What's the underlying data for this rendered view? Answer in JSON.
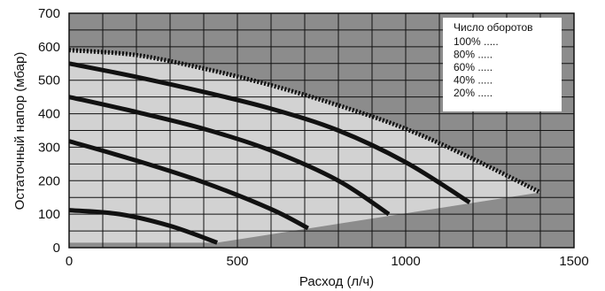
{
  "chart_data": {
    "type": "line",
    "title": "",
    "xlabel": "Расход (л/ч)",
    "ylabel": "Остаточный напор (мбар)",
    "xlim": [
      0,
      1500
    ],
    "ylim": [
      0,
      700
    ],
    "x_ticks": [
      0,
      500,
      1000,
      1500
    ],
    "y_ticks": [
      0,
      100,
      200,
      300,
      400,
      500,
      600,
      700
    ],
    "grid": true,
    "legend": {
      "title": "Число оборотов",
      "placement": "top-right",
      "entries": [
        "100% .....",
        "80% .....",
        "60% .....",
        "40% .....",
        "20% ....."
      ]
    },
    "series": [
      {
        "name": "100%",
        "style": "dotted",
        "points": [
          [
            0,
            590
          ],
          [
            200,
            575
          ],
          [
            400,
            535
          ],
          [
            600,
            485
          ],
          [
            800,
            425
          ],
          [
            1000,
            355
          ],
          [
            1200,
            265
          ],
          [
            1400,
            165
          ]
        ]
      },
      {
        "name": "80%",
        "style": "solid",
        "points": [
          [
            0,
            550
          ],
          [
            200,
            510
          ],
          [
            400,
            465
          ],
          [
            600,
            415
          ],
          [
            800,
            350
          ],
          [
            1000,
            255
          ],
          [
            1190,
            135
          ]
        ]
      },
      {
        "name": "60%",
        "style": "solid",
        "points": [
          [
            0,
            450
          ],
          [
            200,
            405
          ],
          [
            400,
            355
          ],
          [
            600,
            290
          ],
          [
            800,
            200
          ],
          [
            950,
            100
          ]
        ]
      },
      {
        "name": "40%",
        "style": "solid",
        "points": [
          [
            0,
            318
          ],
          [
            200,
            260
          ],
          [
            400,
            195
          ],
          [
            600,
            115
          ],
          [
            710,
            58
          ]
        ]
      },
      {
        "name": "20%",
        "style": "solid",
        "points": [
          [
            0,
            112
          ],
          [
            150,
            100
          ],
          [
            300,
            65
          ],
          [
            440,
            15
          ]
        ]
      }
    ],
    "operating_region": [
      [
        0,
        590
      ],
      [
        200,
        575
      ],
      [
        400,
        535
      ],
      [
        600,
        485
      ],
      [
        800,
        425
      ],
      [
        1000,
        355
      ],
      [
        1200,
        265
      ],
      [
        1400,
        165
      ],
      [
        440,
        15
      ],
      [
        0,
        15
      ]
    ],
    "colors": {
      "background": "#8c8c8c",
      "region_fill": "#d2d2d2",
      "grid": "#111111",
      "curve": "#111111",
      "legend_box": "#ffffff"
    }
  }
}
